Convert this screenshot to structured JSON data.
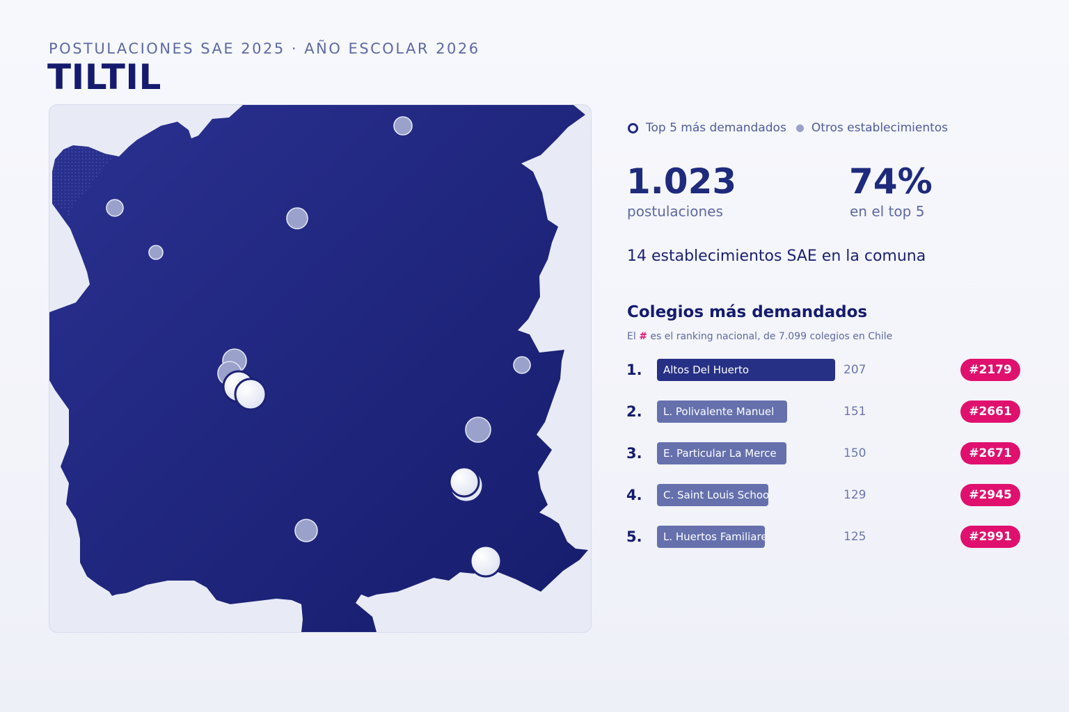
{
  "header": {
    "eyebrow": "POSTULACIONES SAE 2025 · AÑO ESCOLAR 2026",
    "title": "TILTIL"
  },
  "legend": {
    "top5_label": "Top 5 más demandados",
    "others_label": "Otros establecimientos"
  },
  "stats": {
    "applications_value": "1.023",
    "applications_label": "postulaciones",
    "top5_share_value": "74%",
    "top5_share_label": "en el top 5"
  },
  "schools_count_text": "14 establecimientos SAE en la comuna",
  "ranking": {
    "title": "Colegios más demandados",
    "note_prefix": "El",
    "note_hash": "#",
    "note_suffix": "es el ranking nacional, de 7.099 colegios en Chile",
    "items": [
      {
        "rank": "1.",
        "name": "Altos Del Huerto",
        "value": 207,
        "value_text": "207",
        "national_rank": "#2179"
      },
      {
        "rank": "2.",
        "name": "L. Polivalente Manuel",
        "value": 151,
        "value_text": "151",
        "national_rank": "#2661"
      },
      {
        "rank": "3.",
        "name": "E. Particular La Merce",
        "value": 150,
        "value_text": "150",
        "national_rank": "#2671"
      },
      {
        "rank": "4.",
        "name": "C. Saint Louis Schoo",
        "value": 129,
        "value_text": "129",
        "national_rank": "#2945"
      },
      {
        "rank": "5.",
        "name": "L. Huertos Familiare",
        "value": 125,
        "value_text": "125",
        "national_rank": "#2991"
      }
    ]
  },
  "colors": {
    "territory": "#1e2478",
    "background_panel": "#e8ebf5",
    "top5_marker": "#f3f4fb",
    "other_marker": "#9aa2cb",
    "badge": "#e0106e",
    "bar_top": "#263085",
    "bar_other": "#6570ad"
  }
}
